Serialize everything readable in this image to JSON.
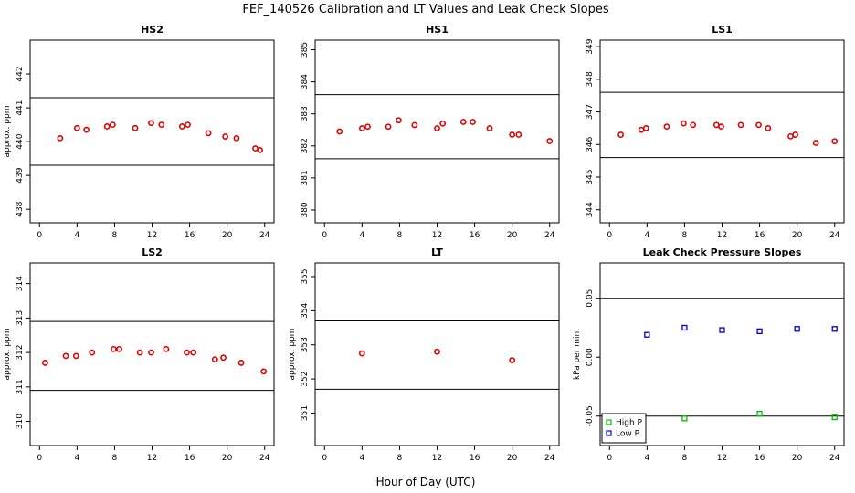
{
  "figure": {
    "title": "FEF_140526  Calibration and LT Values and Leak Check Slopes",
    "xlabel": "Hour of Day (UTC)"
  },
  "chart_data": [
    {
      "type": "scatter",
      "title": "HS2",
      "ylabel": "approx. ppm",
      "xlim": [
        -1,
        25
      ],
      "ylim": [
        437.6,
        443.0
      ],
      "xticks": [
        0,
        4,
        8,
        12,
        16,
        20,
        24
      ],
      "yticks": [
        438,
        439,
        440,
        441,
        442
      ],
      "hlines": [
        439.3,
        441.3
      ],
      "series": [
        {
          "color": "#dd0000",
          "x": [
            2.2,
            4.0,
            5.0,
            7.2,
            7.8,
            10.2,
            11.9,
            13.0,
            15.2,
            15.8,
            18.0,
            19.8,
            21.0,
            23.0,
            23.5
          ],
          "y": [
            440.1,
            440.4,
            440.35,
            440.45,
            440.5,
            440.4,
            440.55,
            440.5,
            440.45,
            440.5,
            440.25,
            440.15,
            440.1,
            439.8,
            439.75
          ]
        }
      ]
    },
    {
      "type": "scatter",
      "title": "HS1",
      "ylabel": "",
      "xlim": [
        -1,
        25
      ],
      "ylim": [
        379.6,
        385.3
      ],
      "xticks": [
        0,
        4,
        8,
        12,
        16,
        20,
        24
      ],
      "yticks": [
        380,
        381,
        382,
        383,
        384,
        385
      ],
      "hlines": [
        381.6,
        383.6
      ],
      "series": [
        {
          "color": "#dd0000",
          "x": [
            1.6,
            4.0,
            4.6,
            6.8,
            7.9,
            9.6,
            12.0,
            12.6,
            14.8,
            15.8,
            17.6,
            20.0,
            20.7,
            24.0
          ],
          "y": [
            382.45,
            382.55,
            382.6,
            382.6,
            382.8,
            382.65,
            382.55,
            382.7,
            382.75,
            382.75,
            382.55,
            382.35,
            382.35,
            382.15
          ]
        }
      ]
    },
    {
      "type": "scatter",
      "title": "LS1",
      "ylabel": "",
      "xlim": [
        -1,
        25
      ],
      "ylim": [
        343.6,
        349.2
      ],
      "xticks": [
        0,
        4,
        8,
        12,
        16,
        20,
        24
      ],
      "yticks": [
        344,
        345,
        346,
        347,
        348,
        349
      ],
      "hlines": [
        345.6,
        347.6
      ],
      "series": [
        {
          "color": "#dd0000",
          "x": [
            1.2,
            3.4,
            3.9,
            6.1,
            7.9,
            8.9,
            11.4,
            11.9,
            14.0,
            15.9,
            16.9,
            19.3,
            19.8,
            22.0,
            24.0
          ],
          "y": [
            346.3,
            346.45,
            346.5,
            346.55,
            346.65,
            346.6,
            346.6,
            346.55,
            346.6,
            346.6,
            346.5,
            346.25,
            346.3,
            346.05,
            346.1
          ]
        }
      ]
    },
    {
      "type": "scatter",
      "title": "LS2",
      "ylabel": "approx. ppm",
      "xlim": [
        -1,
        25
      ],
      "ylim": [
        309.3,
        314.6
      ],
      "xticks": [
        0,
        4,
        8,
        12,
        16,
        20,
        24
      ],
      "yticks": [
        310,
        311,
        312,
        313,
        314
      ],
      "hlines": [
        310.9,
        312.9
      ],
      "series": [
        {
          "color": "#dd0000",
          "x": [
            0.6,
            2.8,
            3.9,
            5.6,
            7.9,
            8.5,
            10.7,
            11.9,
            13.5,
            15.7,
            16.4,
            18.7,
            19.6,
            21.5,
            23.9
          ],
          "y": [
            311.7,
            311.9,
            311.9,
            312.0,
            312.1,
            312.1,
            312.0,
            312.0,
            312.1,
            312.0,
            312.0,
            311.8,
            311.85,
            311.7,
            311.45
          ]
        }
      ]
    },
    {
      "type": "scatter",
      "title": "LT",
      "ylabel": "approx. ppm",
      "xlim": [
        -1,
        25
      ],
      "ylim": [
        350.05,
        355.4
      ],
      "xticks": [
        0,
        4,
        8,
        12,
        16,
        20,
        24
      ],
      "yticks": [
        351,
        352,
        353,
        354,
        355
      ],
      "hlines": [
        351.7,
        353.7
      ],
      "series": [
        {
          "color": "#dd0000",
          "x": [
            4.0,
            12.0,
            20.0
          ],
          "y": [
            352.75,
            352.8,
            352.55
          ]
        }
      ]
    },
    {
      "type": "scatter",
      "title": "Leak Check Pressure Slopes",
      "ylabel": "kPa per min.",
      "xlim": [
        -1,
        25
      ],
      "ylim": [
        -0.075,
        0.08
      ],
      "xticks": [
        0,
        4,
        8,
        12,
        16,
        20,
        24
      ],
      "yticks": [
        -0.05,
        0.0,
        0.05
      ],
      "ytick_labels": [
        "-0.05",
        "0.00",
        "0.05"
      ],
      "hlines": [
        -0.05,
        0.05
      ],
      "legend": "bottom-left",
      "series": [
        {
          "name": "High P",
          "color": "#00bb00",
          "x": [
            8.0,
            16.0,
            24.0
          ],
          "y": [
            -0.052,
            -0.048,
            -0.051
          ]
        },
        {
          "name": "Low P",
          "color": "#0000cc",
          "x": [
            4.0,
            8.0,
            12.0,
            16.0,
            20.0,
            24.0
          ],
          "y": [
            0.019,
            0.025,
            0.023,
            0.022,
            0.024,
            0.024
          ]
        }
      ]
    }
  ]
}
